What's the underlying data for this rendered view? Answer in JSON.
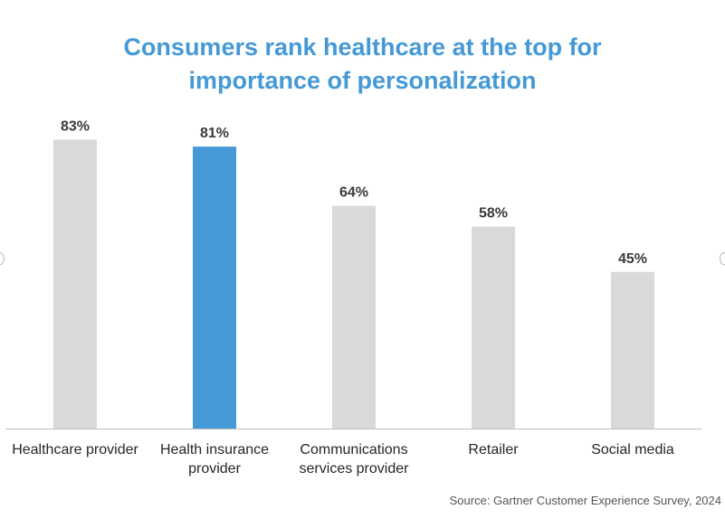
{
  "chart_data": {
    "type": "bar",
    "title_lines": [
      "Consumers rank healthcare at the top for",
      "importance of personalization"
    ],
    "categories": [
      [
        "Healthcare provider"
      ],
      [
        "Health insurance",
        "provider"
      ],
      [
        "Communications",
        "services provider"
      ],
      [
        "Retailer"
      ],
      [
        "Social media"
      ]
    ],
    "values": [
      83,
      81,
      64,
      58,
      45
    ],
    "value_labels": [
      "83%",
      "81%",
      "64%",
      "58%",
      "45%"
    ],
    "highlight_index": 1,
    "ylim": [
      0,
      100
    ],
    "grid": false,
    "colors": {
      "bar": "#d9d9d9",
      "highlight": "#4499d6",
      "title": "#4499d6",
      "axis": "#bfbfbf"
    }
  },
  "source": "Source: Gartner Customer Experience Survey, 2024"
}
